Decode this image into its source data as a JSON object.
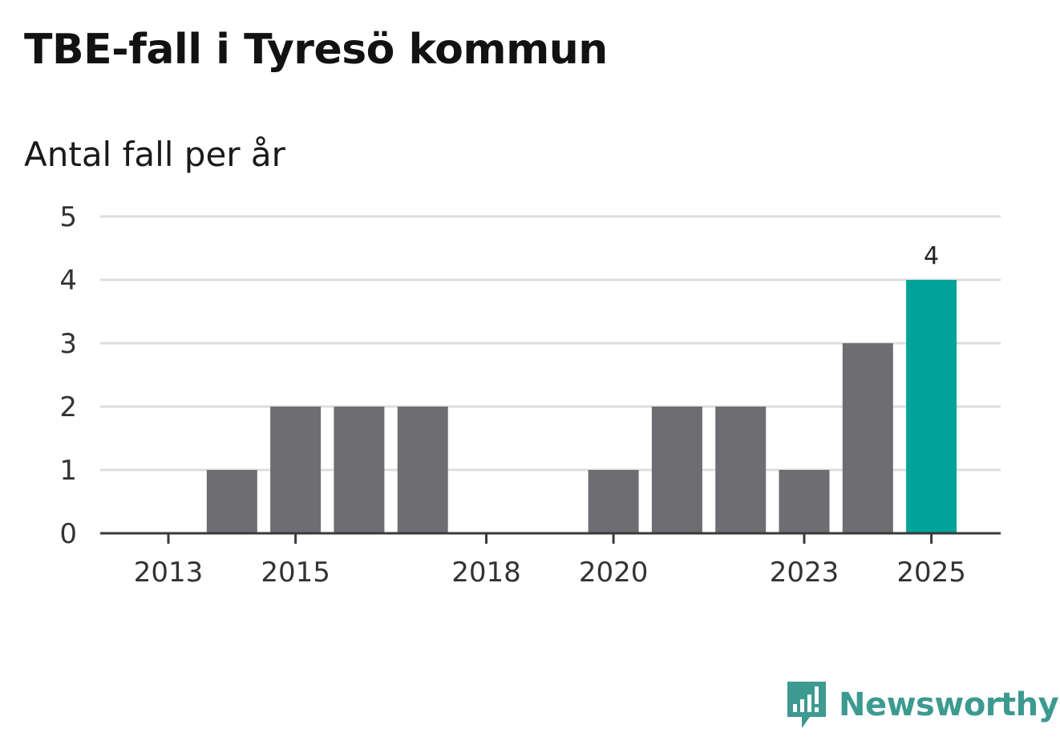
{
  "header": {
    "title": "TBE-fall i Tyresö kommun",
    "subtitle": "Antal fall per år"
  },
  "brand": {
    "name": "Newsworthy",
    "icon": "newsworthy-logo-icon",
    "color": "#3d9a90"
  },
  "chart_data": {
    "type": "bar",
    "title": "TBE-fall i Tyresö kommun",
    "subtitle": "Antal fall per år",
    "xlabel": "",
    "ylabel": "",
    "categories": [
      2013,
      2014,
      2015,
      2016,
      2017,
      2018,
      2019,
      2020,
      2021,
      2022,
      2023,
      2024,
      2025
    ],
    "values": [
      0,
      1,
      2,
      2,
      2,
      0,
      0,
      1,
      2,
      2,
      1,
      3,
      4
    ],
    "x_tick_labels": [
      "2013",
      "2015",
      "2018",
      "2020",
      "2023",
      "2025"
    ],
    "y_ticks": [
      0,
      1,
      2,
      3,
      4,
      5
    ],
    "ylim": [
      0,
      5
    ],
    "grid": true,
    "highlight": {
      "category": 2025,
      "color": "#00a39a",
      "label": "4"
    },
    "bar_color": "#6e6d72"
  }
}
